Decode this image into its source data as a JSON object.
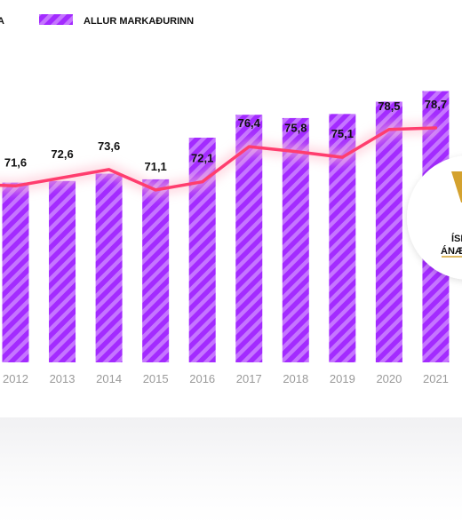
{
  "chart_data": {
    "type": "bar",
    "categories": [
      "2012",
      "2013",
      "2014",
      "2015",
      "2016",
      "2017",
      "2018",
      "2019",
      "2020",
      "2021"
    ],
    "series": [
      {
        "name": "ALLUR MARKAÐURINN",
        "type": "bar",
        "values": [
          72.0,
          72.2,
          73.1,
          72.4,
          77.5,
          80.3,
          79.9,
          80.4,
          81.9,
          83.2
        ]
      },
      {
        "name": "",
        "type": "line",
        "values": [
          71.6,
          72.6,
          73.6,
          71.1,
          72.1,
          76.4,
          75.8,
          75.1,
          78.5,
          78.7
        ],
        "labels": [
          "71,6",
          "72,6",
          "73,6",
          "71,1",
          "72,1",
          "76,4",
          "75,8",
          "75,1",
          "78,5",
          "78,7"
        ]
      }
    ],
    "legend_partial_label": "A",
    "badge_text": [
      "ÍSL",
      "ÁNÆG"
    ],
    "legend_position": "top",
    "grid": false,
    "ylim": [
      50,
      90
    ],
    "colors": {
      "bar": "#a32bff",
      "bar_stripe": "#c575ff",
      "line": "#ff3d6e",
      "line_glow": "#ffc2d1",
      "badge_gold": "#d4a22e",
      "label": "#111111",
      "tick": "#9a9a9a"
    }
  }
}
